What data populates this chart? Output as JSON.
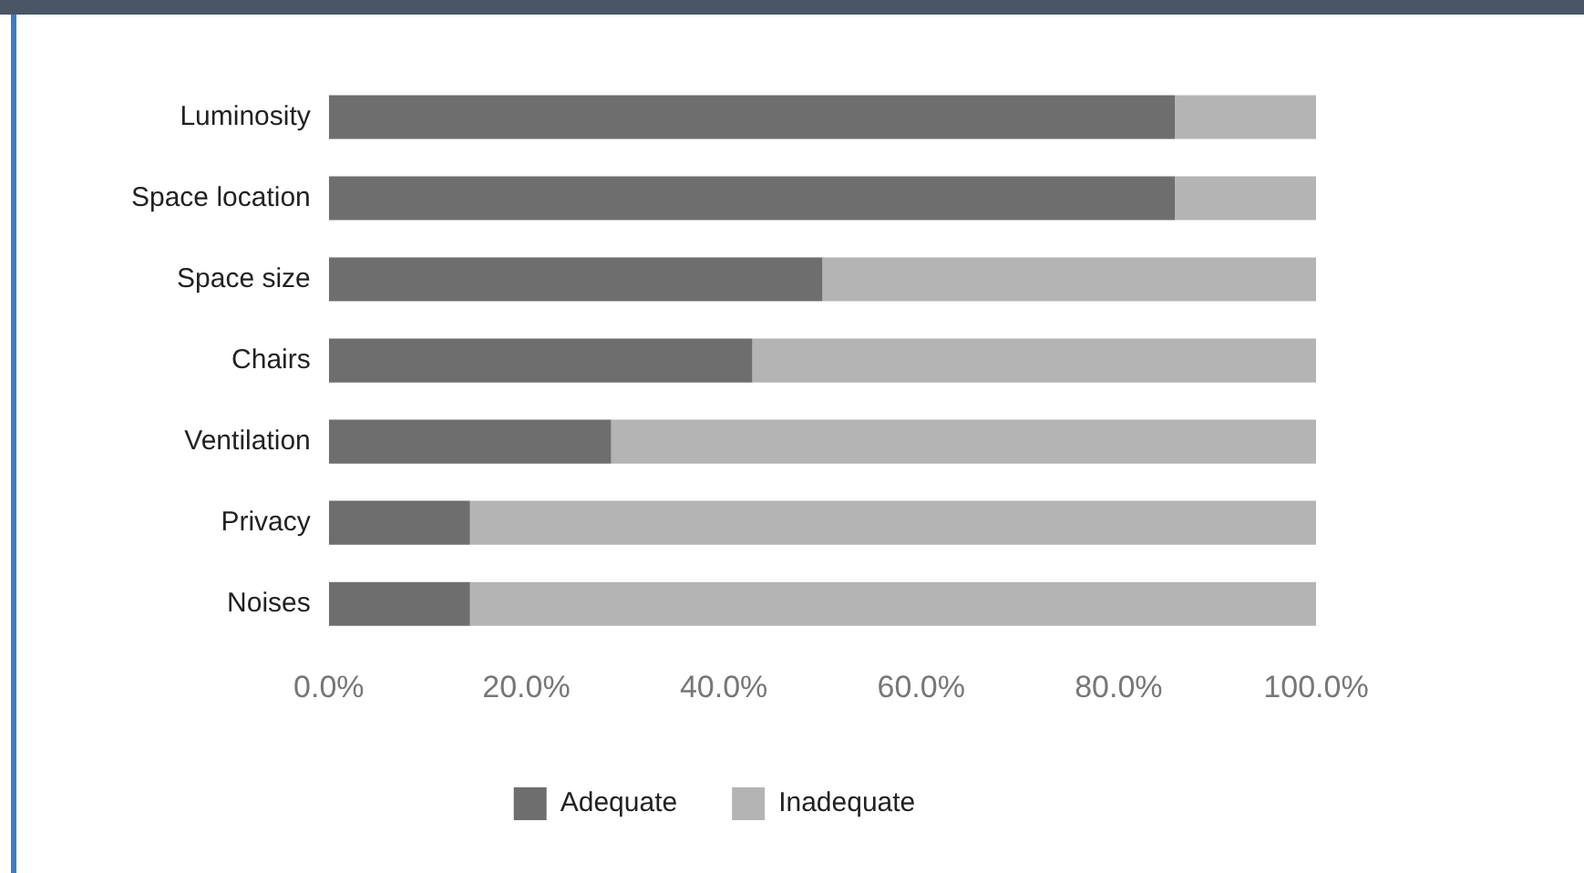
{
  "chart_data": {
    "type": "bar",
    "orientation": "horizontal",
    "stacked": true,
    "categories": [
      "Luminosity",
      "Space location",
      "Space size",
      "Chairs",
      "Ventilation",
      "Privacy",
      "Noises"
    ],
    "series": [
      {
        "name": "Adequate",
        "color": "#6e6e6e",
        "values": [
          85.7,
          85.7,
          50,
          42.9,
          28.6,
          14.3,
          14.3
        ]
      },
      {
        "name": "Inadequate",
        "color": "#b4b4b4",
        "values": [
          14.3,
          14.3,
          50,
          57.1,
          71.4,
          85.7,
          85.7
        ]
      }
    ],
    "xlim": [
      0,
      100
    ],
    "xticks": [
      {
        "value": 0,
        "label": "0.0%"
      },
      {
        "value": 20,
        "label": "20.0%"
      },
      {
        "value": 40,
        "label": "40.0%"
      },
      {
        "value": 60,
        "label": "60.0%"
      },
      {
        "value": 80,
        "label": "80.0%"
      },
      {
        "value": 100,
        "label": "100.0%"
      }
    ],
    "legend": "bottom"
  }
}
